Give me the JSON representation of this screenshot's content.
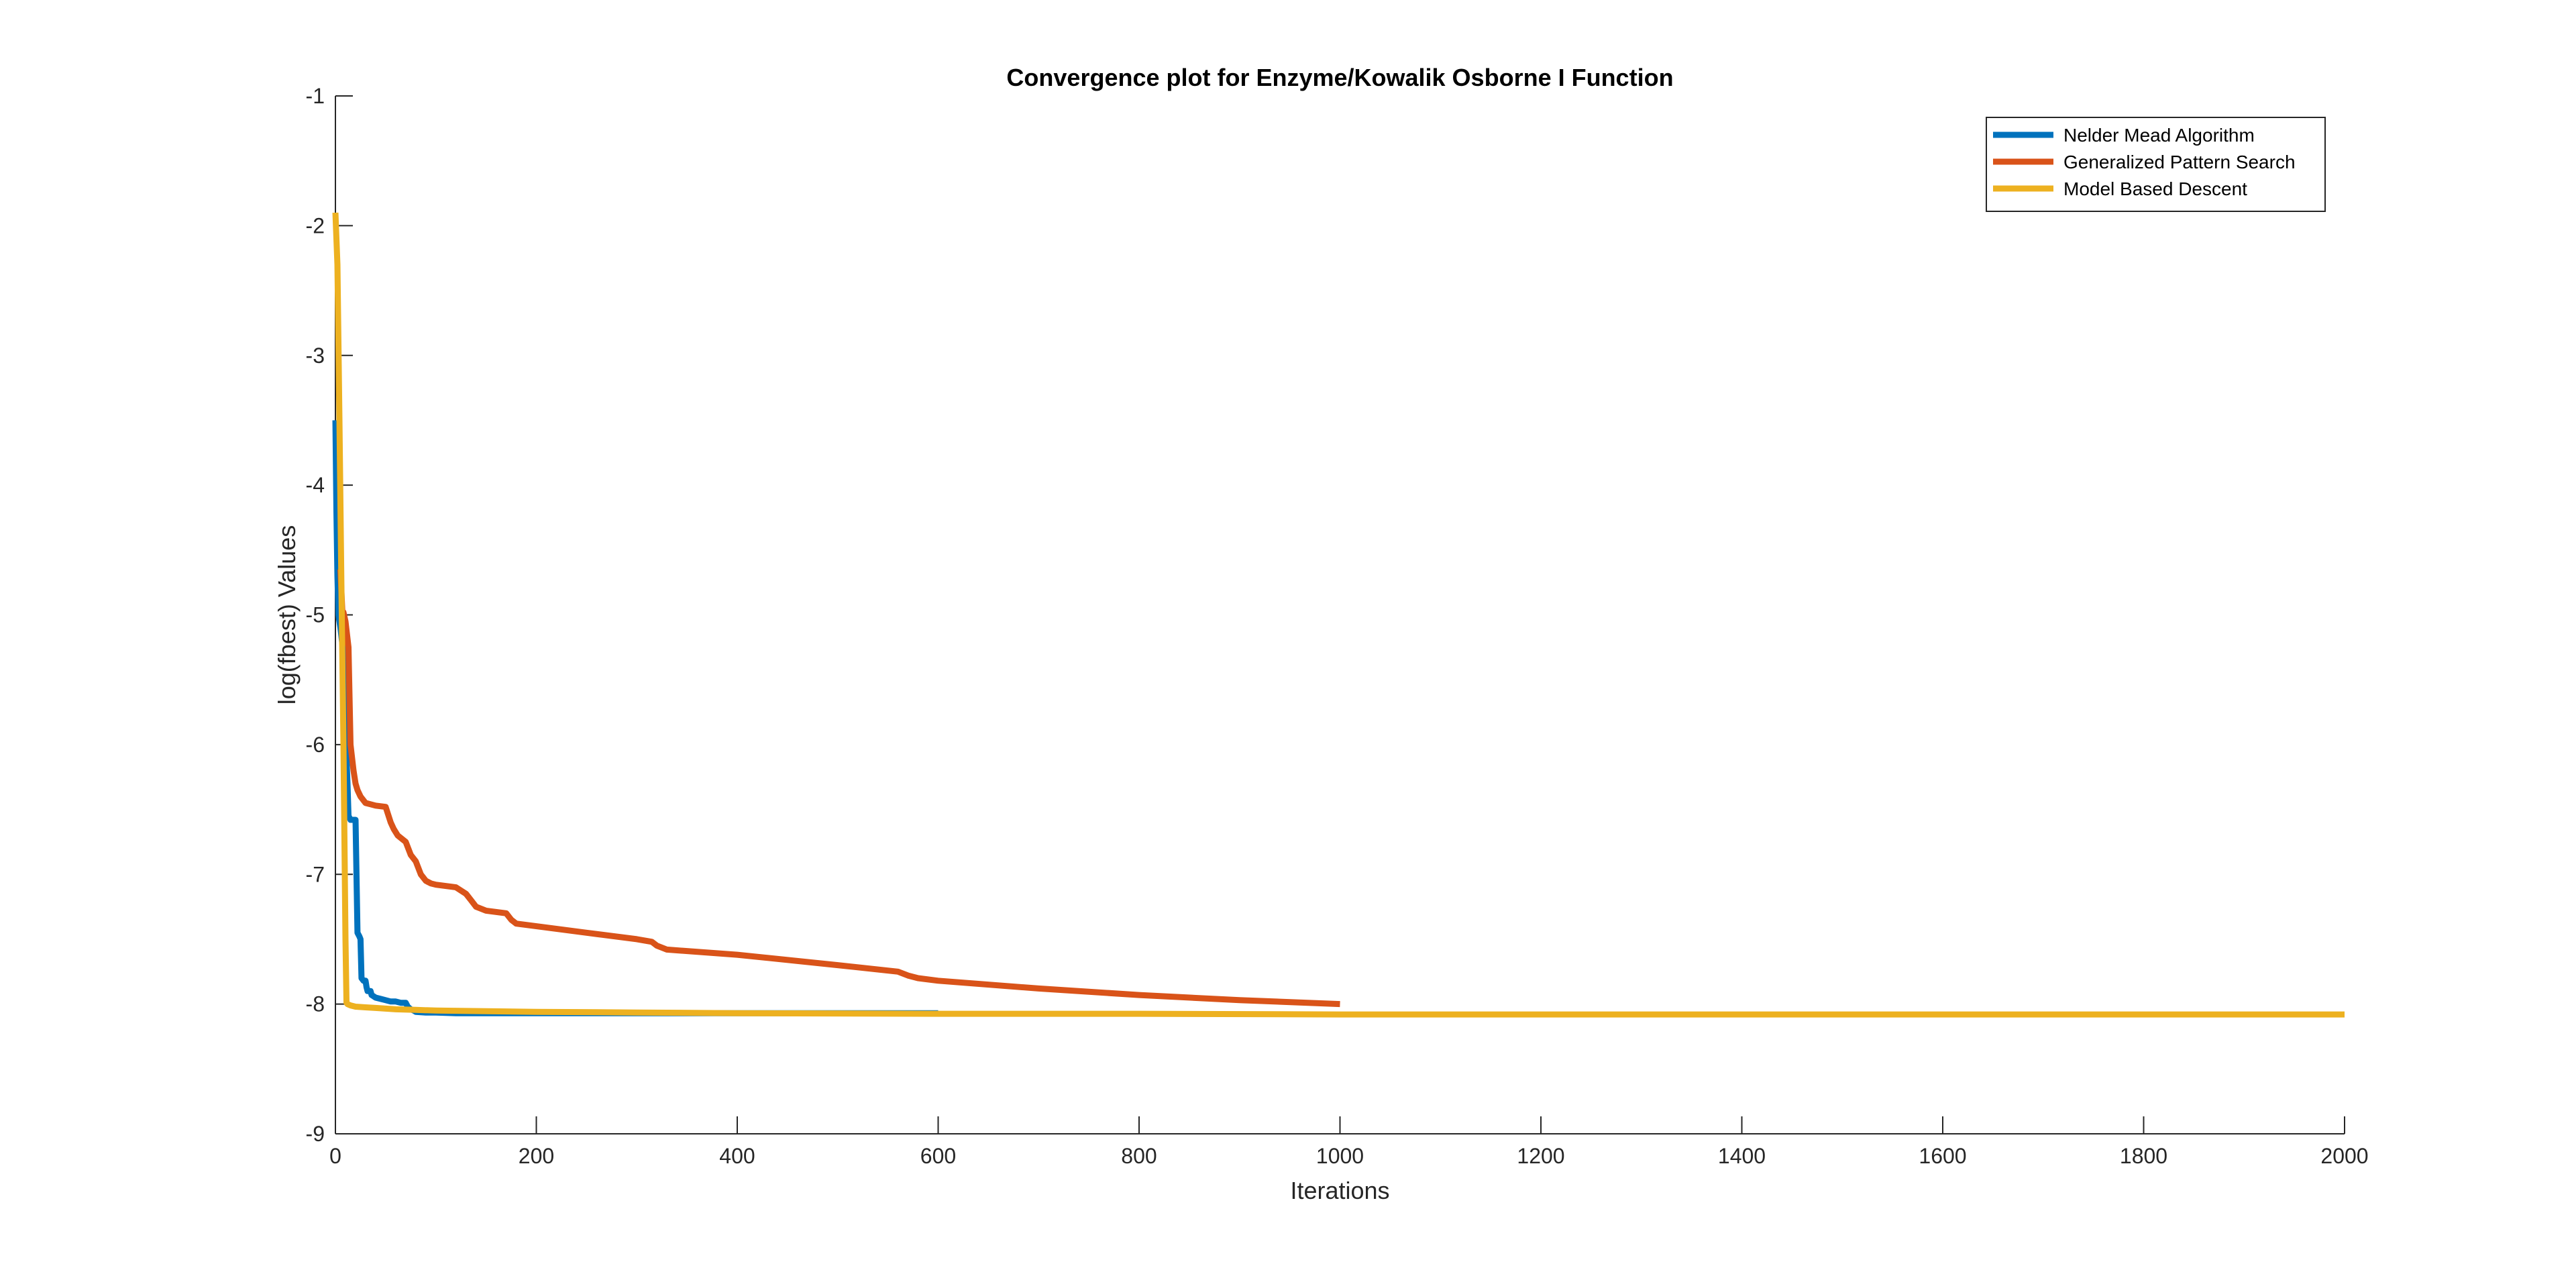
{
  "chart_data": {
    "type": "line",
    "title": "Convergence plot for Enzyme/Kowalik Osborne I Function",
    "xlabel": "Iterations",
    "ylabel": "log(fbest) Values",
    "xlim": [
      0,
      2000
    ],
    "ylim": [
      -9,
      -1
    ],
    "x_ticks": [
      0,
      200,
      400,
      600,
      800,
      1000,
      1200,
      1400,
      1600,
      1800,
      2000
    ],
    "y_ticks": [
      -9,
      -8,
      -7,
      -6,
      -5,
      -4,
      -3,
      -2,
      -1
    ],
    "grid": false,
    "legend_position": "top-right",
    "series": [
      {
        "name": "Nelder Mead Algorithm",
        "color": "#0072BD",
        "x": [
          0,
          1,
          2,
          3,
          5,
          8,
          10,
          12,
          13,
          15,
          16,
          20,
          21,
          22,
          24,
          25,
          26,
          28,
          30,
          31,
          32,
          35,
          36,
          38,
          40,
          45,
          50,
          55,
          60,
          65,
          70,
          72,
          75,
          78,
          80,
          90,
          100,
          120,
          150,
          200,
          300,
          400,
          500,
          600
        ],
        "y": [
          -3.5,
          -4.2,
          -4.7,
          -5.0,
          -5.1,
          -5.3,
          -5.9,
          -6.3,
          -6.55,
          -6.58,
          -6.58,
          -6.58,
          -7.0,
          -7.45,
          -7.48,
          -7.5,
          -7.8,
          -7.82,
          -7.82,
          -7.87,
          -7.9,
          -7.9,
          -7.93,
          -7.94,
          -7.95,
          -7.96,
          -7.97,
          -7.98,
          -7.98,
          -7.99,
          -7.99,
          -8.02,
          -8.04,
          -8.05,
          -8.06,
          -8.065,
          -8.065,
          -8.07,
          -8.07,
          -8.07,
          -8.07,
          -8.07,
          -8.07,
          -8.07
        ]
      },
      {
        "name": "Generalized Pattern Search",
        "color": "#D95319",
        "x": [
          5,
          7,
          8,
          10,
          13,
          15,
          18,
          20,
          22,
          25,
          30,
          35,
          40,
          50,
          55,
          58,
          62,
          70,
          75,
          80,
          85,
          90,
          95,
          100,
          120,
          130,
          135,
          140,
          150,
          170,
          175,
          180,
          200,
          250,
          300,
          315,
          320,
          330,
          400,
          500,
          560,
          570,
          580,
          600,
          700,
          800,
          900,
          1000
        ],
        "y": [
          -4.65,
          -5.0,
          -4.98,
          -5.05,
          -5.25,
          -6.0,
          -6.2,
          -6.3,
          -6.35,
          -6.4,
          -6.45,
          -6.46,
          -6.47,
          -6.48,
          -6.6,
          -6.65,
          -6.7,
          -6.75,
          -6.85,
          -6.9,
          -7.0,
          -7.05,
          -7.07,
          -7.08,
          -7.1,
          -7.15,
          -7.2,
          -7.25,
          -7.28,
          -7.3,
          -7.35,
          -7.38,
          -7.4,
          -7.45,
          -7.5,
          -7.52,
          -7.55,
          -7.58,
          -7.62,
          -7.7,
          -7.75,
          -7.78,
          -7.8,
          -7.82,
          -7.88,
          -7.93,
          -7.97,
          -8.0
        ]
      },
      {
        "name": "Model Based Descent",
        "color": "#EDB120",
        "x": [
          0,
          2,
          4,
          6,
          8,
          10,
          11,
          12,
          15,
          20,
          30,
          40,
          60,
          80,
          100,
          150,
          200,
          300,
          400,
          600,
          800,
          1000,
          1200,
          1400,
          1600,
          1800,
          2000
        ],
        "y": [
          -1.9,
          -2.3,
          -3.5,
          -4.8,
          -6.0,
          -7.5,
          -7.99,
          -8.0,
          -8.01,
          -8.02,
          -8.025,
          -8.03,
          -8.04,
          -8.045,
          -8.05,
          -8.055,
          -8.06,
          -8.065,
          -8.07,
          -8.075,
          -8.075,
          -8.08,
          -8.08,
          -8.08,
          -8.08,
          -8.08,
          -8.08
        ]
      }
    ]
  }
}
